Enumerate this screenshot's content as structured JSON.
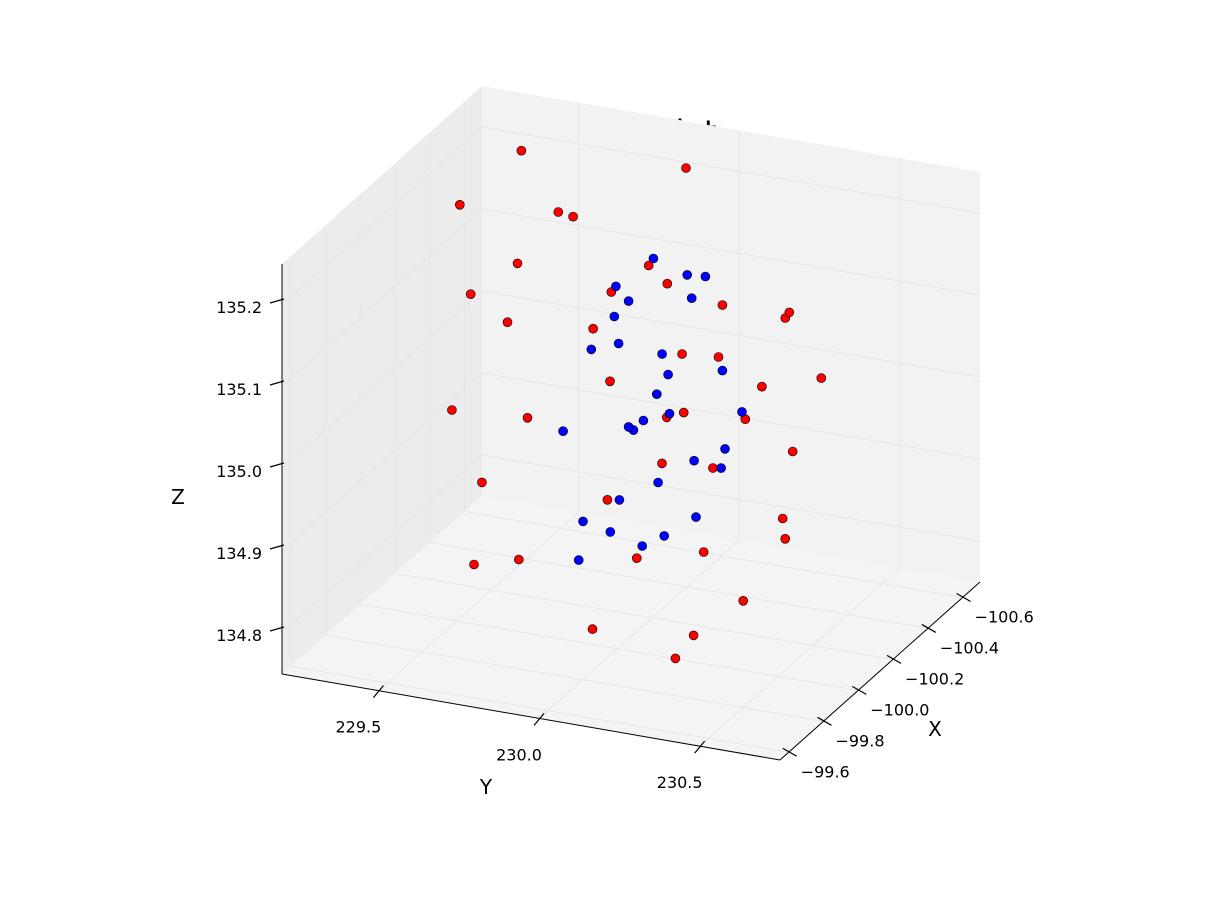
{
  "chart_data": {
    "type": "scatter",
    "title": "Scatter plot",
    "xlabel": "X",
    "ylabel": "Y",
    "zlabel": "Z",
    "xlim": [
      -100.7,
      -99.55
    ],
    "ylim": [
      229.2,
      230.75
    ],
    "zlim": [
      134.75,
      135.25
    ],
    "x_ticks": [
      "−100.6",
      "−100.4",
      "−100.2",
      "−100.0",
      "−99.8",
      "−99.6"
    ],
    "x_tick_values": [
      -100.6,
      -100.4,
      -100.2,
      -100.0,
      -99.8,
      -99.6
    ],
    "y_ticks": [
      "229.5",
      "230.0",
      "230.5"
    ],
    "y_tick_values": [
      229.5,
      230.0,
      230.5
    ],
    "z_ticks": [
      "134.8",
      "134.9",
      "135.0",
      "135.1",
      "135.2"
    ],
    "z_tick_values": [
      134.8,
      134.9,
      135.0,
      135.1,
      135.2
    ],
    "grid": true,
    "colors": {
      "series_1": "#ff0000",
      "series_2": "#0000ff",
      "pane": "#f2f2f2",
      "grid": "#e6e6e6"
    },
    "series": [
      {
        "color": "#ff0000",
        "points": [
          [
            -100.52,
            229.42,
            135.22
          ],
          [
            -100.45,
            229.3,
            135.05
          ],
          [
            -100.4,
            229.6,
            135.18
          ],
          [
            -100.35,
            229.5,
            135.12
          ],
          [
            -100.3,
            229.7,
            135.2
          ],
          [
            -100.55,
            229.8,
            135.1
          ],
          [
            -100.25,
            229.35,
            134.95
          ],
          [
            -100.2,
            229.55,
            135.08
          ],
          [
            -100.15,
            229.9,
            135.15
          ],
          [
            -100.1,
            230.1,
            135.02
          ],
          [
            -100.05,
            230.3,
            135.18
          ],
          [
            -100.0,
            230.45,
            135.1
          ],
          [
            -99.95,
            230.55,
            135.2
          ],
          [
            -99.9,
            230.6,
            135.05
          ],
          [
            -99.85,
            230.35,
            134.92
          ],
          [
            -99.8,
            230.5,
            134.88
          ],
          [
            -99.75,
            230.65,
            135.0
          ],
          [
            -99.7,
            230.4,
            134.85
          ],
          [
            -100.6,
            229.6,
            135.0
          ],
          [
            -100.5,
            229.45,
            134.9
          ],
          [
            -100.42,
            229.75,
            134.98
          ],
          [
            -100.38,
            229.95,
            135.12
          ],
          [
            -100.28,
            230.05,
            135.06
          ],
          [
            -100.22,
            229.85,
            134.88
          ],
          [
            -100.18,
            230.2,
            134.95
          ],
          [
            -100.12,
            230.25,
            135.1
          ],
          [
            -100.08,
            229.65,
            134.82
          ],
          [
            -100.02,
            230.05,
            134.86
          ],
          [
            -99.98,
            230.15,
            134.99
          ],
          [
            -99.92,
            230.25,
            135.07
          ],
          [
            -99.88,
            230.7,
            135.15
          ],
          [
            -99.82,
            230.62,
            134.96
          ],
          [
            -99.78,
            230.3,
            134.8
          ],
          [
            -100.48,
            229.25,
            135.15
          ],
          [
            -100.33,
            229.4,
            134.85
          ],
          [
            -100.58,
            229.9,
            135.22
          ],
          [
            -100.1,
            229.5,
            134.8
          ],
          [
            -99.95,
            229.95,
            134.78
          ],
          [
            -100.25,
            230.4,
            135.14
          ],
          [
            -99.72,
            230.55,
            135.12
          ]
        ]
      },
      {
        "color": "#0000ff",
        "points": [
          [
            -100.2,
            230.05,
            135.05
          ],
          [
            -100.15,
            230.0,
            135.0
          ],
          [
            -100.1,
            229.95,
            135.1
          ],
          [
            -100.05,
            230.1,
            134.95
          ],
          [
            -100.0,
            230.05,
            135.02
          ],
          [
            -100.25,
            229.9,
            135.12
          ],
          [
            -100.3,
            230.0,
            134.98
          ],
          [
            -99.95,
            230.15,
            135.08
          ],
          [
            -99.9,
            230.2,
            134.92
          ],
          [
            -100.18,
            230.12,
            135.18
          ],
          [
            -100.08,
            229.85,
            134.88
          ],
          [
            -100.12,
            230.18,
            134.9
          ],
          [
            -100.22,
            229.8,
            135.06
          ],
          [
            -100.02,
            229.98,
            135.15
          ],
          [
            -99.98,
            230.25,
            135.0
          ],
          [
            -100.28,
            230.08,
            135.13
          ],
          [
            -100.35,
            229.95,
            135.04
          ],
          [
            -100.05,
            230.3,
            135.1
          ],
          [
            -99.92,
            230.05,
            134.95
          ],
          [
            -100.15,
            229.75,
            134.97
          ],
          [
            -100.1,
            230.22,
            135.2
          ],
          [
            -100.2,
            230.28,
            135.02
          ],
          [
            -100.0,
            229.88,
            134.85
          ],
          [
            -99.88,
            230.1,
            135.05
          ],
          [
            -100.32,
            230.15,
            134.92
          ],
          [
            -100.25,
            230.2,
            134.96
          ],
          [
            -100.06,
            230.08,
            135.22
          ],
          [
            -100.14,
            229.92,
            135.16
          ],
          [
            -99.96,
            230.0,
            134.9
          ],
          [
            -100.18,
            229.98,
            134.84
          ]
        ]
      }
    ]
  }
}
